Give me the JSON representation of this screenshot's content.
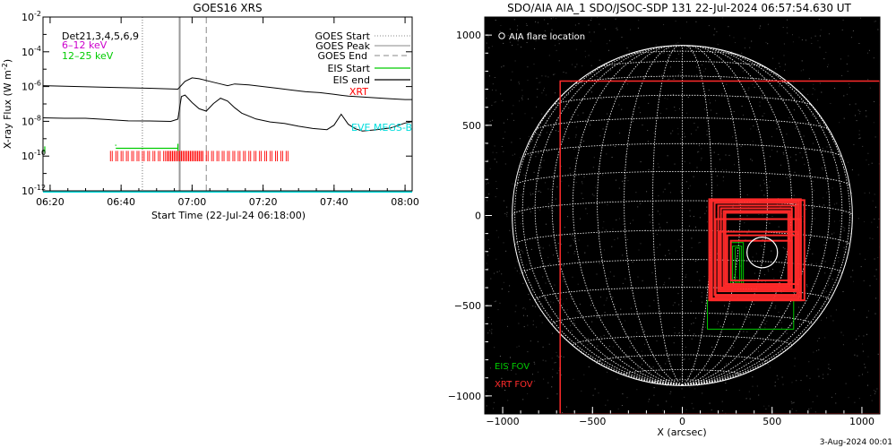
{
  "chart_data": [
    {
      "type": "line",
      "title": "GOES16 XRS",
      "xlabel": "Start Time (22-Jul-24 06:18:00)",
      "ylabel": "X-ray Flux (W m",
      "ylabel_sup": "-2",
      "ylabel_close": ")",
      "x_range_minutes": [
        0,
        104
      ],
      "y_log_exponent_range": [
        -12,
        -2
      ],
      "x_ticks": [
        {
          "minute": 2,
          "label": "06:20"
        },
        {
          "minute": 22,
          "label": "06:40"
        },
        {
          "minute": 42,
          "label": "07:00"
        },
        {
          "minute": 62,
          "label": "07:20"
        },
        {
          "minute": 82,
          "label": "07:40"
        },
        {
          "minute": 102,
          "label": "08:00"
        }
      ],
      "y_ticks": [
        {
          "exp": -2,
          "label": "10",
          "sup": "-2"
        },
        {
          "exp": -4,
          "label": "10",
          "sup": "-4"
        },
        {
          "exp": -6,
          "label": "10",
          "sup": "-6"
        },
        {
          "exp": -8,
          "label": "10",
          "sup": "-8"
        },
        {
          "exp": -10,
          "label": "10",
          "sup": "-10"
        },
        {
          "exp": -12,
          "label": "10",
          "sup": "-12"
        }
      ],
      "legend_left": [
        {
          "label": "Det21,3,4,5,6,9",
          "color": "#000000"
        },
        {
          "label": "6–12 keV",
          "color": "#cc00cc"
        },
        {
          "label": "12–25 keV",
          "color": "#00cc00"
        }
      ],
      "legend_right": [
        {
          "label": "GOES Start",
          "color": "#888888",
          "style": "dotted"
        },
        {
          "label": "GOES Peak",
          "color": "#888888",
          "style": "solid"
        },
        {
          "label": "GOES End",
          "color": "#888888",
          "style": "dashed"
        },
        {
          "label": "EIS Start",
          "color": "#00cc00",
          "style": "solid"
        },
        {
          "label": "EIS end",
          "color": "#000000",
          "style": "solid"
        },
        {
          "label": "XRT",
          "color": "#ff0000",
          "style": "text"
        }
      ],
      "eve_label": "EVE MEGS-B",
      "eve_color": "#00dddd",
      "series": [
        {
          "name": "",
          "color": "#000000",
          "x": [
            0,
            10,
            20,
            30,
            38,
            40,
            42,
            44,
            46,
            48,
            50,
            52,
            54,
            58,
            62,
            66,
            70,
            74,
            78,
            82,
            86,
            90,
            94,
            98,
            102,
            104
          ],
          "y_exp": [
            -5.95,
            -6.0,
            -6.05,
            -6.1,
            -6.15,
            -5.7,
            -5.5,
            -5.55,
            -5.65,
            -5.75,
            -5.85,
            -5.95,
            -5.85,
            -5.9,
            -6.0,
            -6.1,
            -6.2,
            -6.3,
            -6.35,
            -6.45,
            -6.55,
            -6.6,
            -6.65,
            -6.7,
            -6.75,
            -6.75
          ]
        },
        {
          "name": "",
          "color": "#000000",
          "x": [
            0,
            6,
            12,
            18,
            24,
            30,
            36,
            38,
            39,
            40,
            42,
            44,
            46,
            48,
            50,
            52,
            54,
            56,
            60,
            64,
            68,
            72,
            76,
            80,
            82,
            84,
            86,
            88,
            90,
            94,
            98,
            102,
            104
          ],
          "y_exp": [
            -7.8,
            -7.85,
            -7.85,
            -7.9,
            -7.95,
            -7.95,
            -8.0,
            -7.9,
            -6.6,
            -6.5,
            -6.9,
            -7.25,
            -7.4,
            -7.0,
            -6.7,
            -6.85,
            -7.2,
            -7.5,
            -7.85,
            -8.05,
            -8.15,
            -8.3,
            -8.4,
            -8.45,
            -8.2,
            -7.6,
            -8.2,
            -8.45,
            -8.55,
            -8.45,
            -8.35,
            -8.1,
            -8.05
          ]
        },
        {
          "name": "",
          "color": "#00dddd",
          "x": [
            0,
            104
          ],
          "y_exp": [
            -12.05,
            -12.05
          ]
        }
      ],
      "goes_events": {
        "start_minute": 28,
        "peak_minute": 38.5,
        "end_minute": 46
      },
      "eis_segments": [
        {
          "x": [
            20.5,
            38
          ],
          "y_exp": -9.55
        },
        {
          "x": [
            0,
            0.5
          ],
          "y_exp": -9.7
        }
      ],
      "xrt_band": {
        "start_minute": 19,
        "end_minute": 69,
        "y_exp_range": [
          -10.3,
          -9.7
        ],
        "dense_range": [
          35,
          45
        ]
      }
    },
    {
      "type": "scatter",
      "title": "SDO/AIA AIA_1 SDO/JSOC-SDP 131 22-Jul-2024 06:57:54.630 UT",
      "xlabel": "X (arcsec)",
      "ylabel": "",
      "xlim": [
        -1100,
        1100
      ],
      "ylim": [
        -1100,
        1100
      ],
      "x_ticks": [
        -1000,
        -500,
        0,
        500,
        1000
      ],
      "y_ticks": [
        -1000,
        -500,
        0,
        500,
        1000
      ],
      "solar_radius_arcsec": 947,
      "flare_location_label": "AIA flare location",
      "flare_location": {
        "x": 445,
        "y": -205,
        "r": 85
      },
      "footer_date": "3-Aug-2024 00:01",
      "xrt_fov_outline": {
        "x0": -680,
        "x1": 1100,
        "y0": -1100,
        "y1": 745
      },
      "xrt_boxes": [
        {
          "x0": 150,
          "x1": 660,
          "y0": -470,
          "y1": 90
        },
        {
          "x0": 165,
          "x1": 650,
          "y0": -460,
          "y1": 80
        },
        {
          "x0": 180,
          "x1": 640,
          "y0": -440,
          "y1": 70
        },
        {
          "x0": 200,
          "x1": 630,
          "y0": -420,
          "y1": 55
        },
        {
          "x0": 215,
          "x1": 610,
          "y0": -400,
          "y1": 40
        },
        {
          "x0": 230,
          "x1": 600,
          "y0": -390,
          "y1": 25
        },
        {
          "x0": 240,
          "x1": 590,
          "y0": -380,
          "y1": 15
        },
        {
          "x0": 160,
          "x1": 680,
          "y0": -470,
          "y1": 85
        },
        {
          "x0": 185,
          "x1": 660,
          "y0": -450,
          "y1": -20
        },
        {
          "x0": 210,
          "x1": 640,
          "y0": -410,
          "y1": -90
        },
        {
          "x0": 250,
          "x1": 630,
          "y0": -380,
          "y1": -110
        },
        {
          "x0": 270,
          "x1": 610,
          "y0": -360,
          "y1": -140
        }
      ],
      "eis_boxes": [
        {
          "x0": 140,
          "x1": 620,
          "y0": -630,
          "y1": -470
        },
        {
          "x0": 270,
          "x1": 340,
          "y0": -390,
          "y1": -150
        },
        {
          "x0": 280,
          "x1": 330,
          "y0": -380,
          "y1": -170
        },
        {
          "x0": 295,
          "x1": 320,
          "y0": -370,
          "y1": -180
        }
      ],
      "legend": [
        {
          "label": "EIS FOV",
          "color": "#00cc00"
        },
        {
          "label": "XRT FOV",
          "color": "#ff2a2a"
        }
      ]
    }
  ]
}
